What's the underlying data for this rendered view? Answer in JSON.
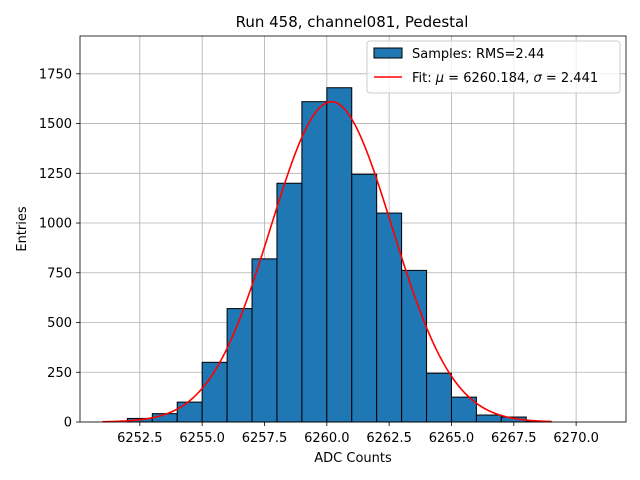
{
  "chart_data": {
    "type": "bar",
    "title": "Run 458, channel081, Pedestal",
    "xlabel": "ADC Counts",
    "ylabel": "Entries",
    "xlim": [
      6250.1,
      6272.0
    ],
    "ylim": [
      0,
      1940
    ],
    "xticks": [
      6252.5,
      6255.0,
      6257.5,
      6260.0,
      6262.5,
      6265.0,
      6267.5,
      6270.0
    ],
    "xtick_labels": [
      "6252.5",
      "6255.0",
      "6257.5",
      "6260.0",
      "6262.5",
      "6265.0",
      "6267.5",
      "6270.0"
    ],
    "yticks": [
      0,
      250,
      500,
      750,
      1000,
      1250,
      1500,
      1750
    ],
    "ytick_labels": [
      "0",
      "250",
      "500",
      "750",
      "1000",
      "1250",
      "1500",
      "1750"
    ],
    "grid": true,
    "legend_position": "top-right",
    "bar_color": "#1f77b4",
    "fit_color": "#ff0000",
    "bins": [
      {
        "x0": 6252,
        "x1": 6253,
        "count": 18
      },
      {
        "x0": 6253,
        "x1": 6254,
        "count": 42
      },
      {
        "x0": 6254,
        "x1": 6255,
        "count": 100
      },
      {
        "x0": 6255,
        "x1": 6256,
        "count": 300
      },
      {
        "x0": 6256,
        "x1": 6257,
        "count": 570
      },
      {
        "x0": 6257,
        "x1": 6258,
        "count": 820
      },
      {
        "x0": 6258,
        "x1": 6259,
        "count": 1200
      },
      {
        "x0": 6259,
        "x1": 6260,
        "count": 1610
      },
      {
        "x0": 6260,
        "x1": 6261,
        "count": 1680
      },
      {
        "x0": 6261,
        "x1": 6262,
        "count": 1245
      },
      {
        "x0": 6262,
        "x1": 6263,
        "count": 1050
      },
      {
        "x0": 6263,
        "x1": 6264,
        "count": 762
      },
      {
        "x0": 6264,
        "x1": 6265,
        "count": 245
      },
      {
        "x0": 6265,
        "x1": 6266,
        "count": 125
      },
      {
        "x0": 6266,
        "x1": 6267,
        "count": 35
      },
      {
        "x0": 6267,
        "x1": 6268,
        "count": 25
      },
      {
        "x0": 6268,
        "x1": 6269,
        "count": 3
      }
    ],
    "fit": {
      "mu": 6260.184,
      "sigma": 2.441,
      "amplitude": 1610,
      "x_range": [
        6251.0,
        6269.0
      ]
    },
    "legend": [
      {
        "label": "Samples: RMS=2.44",
        "kind": "patch"
      },
      {
        "label_prefix": "Fit: ",
        "mu_symbol": "μ",
        "mu_text": " = 6260.184, ",
        "sigma_symbol": "σ",
        "sigma_text": " = 2.441",
        "kind": "line"
      }
    ]
  }
}
